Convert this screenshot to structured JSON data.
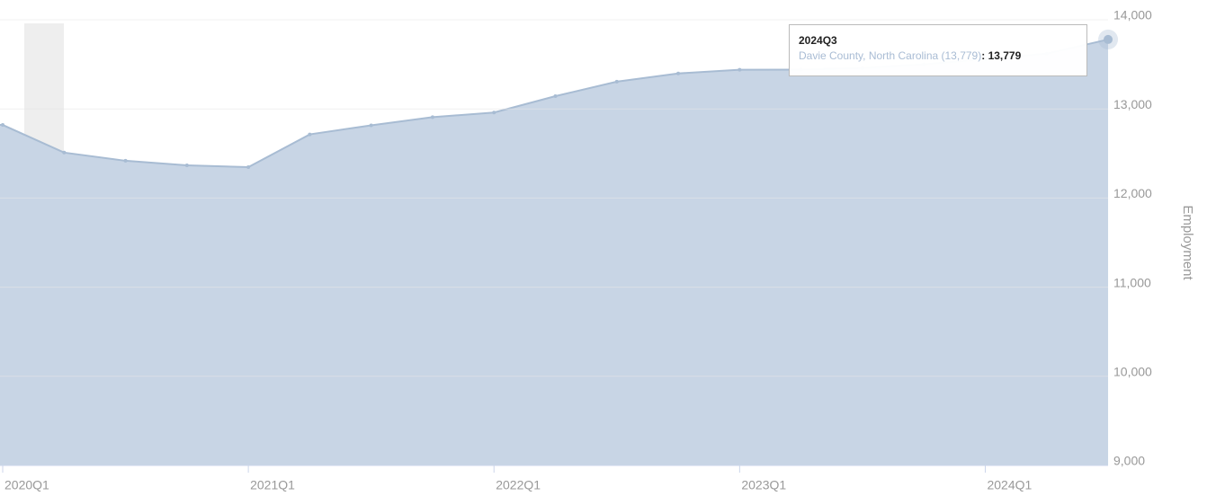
{
  "chart_data": {
    "type": "area",
    "y_label": "Employment",
    "categories": [
      "2020Q1",
      null,
      null,
      null,
      "2021Q1",
      null,
      null,
      null,
      "2022Q1",
      null,
      null,
      null,
      "2023Q1",
      null,
      null,
      null,
      "2024Q1",
      null,
      null
    ],
    "series": [
      {
        "name": "Davie County, North Carolina",
        "color": "#a8bcd3",
        "fill": "#c5d3e4",
        "values": [
          12820,
          12510,
          12418,
          12367,
          12347,
          12714,
          12816,
          12908,
          12959,
          13143,
          13306,
          13398,
          13439,
          13440,
          13460,
          13500,
          13560,
          13620,
          13779
        ]
      }
    ],
    "ylim": [
      9000,
      14000
    ],
    "yticks": [
      {
        "value": 9000,
        "label": "9,000"
      },
      {
        "value": 10000,
        "label": "10,000"
      },
      {
        "value": 11000,
        "label": "11,000"
      },
      {
        "value": 12000,
        "label": "12,000"
      },
      {
        "value": 13000,
        "label": "13,000"
      },
      {
        "value": 14000,
        "label": "14,000"
      }
    ],
    "grid": true,
    "tooltip": {
      "title": "2024Q3",
      "series_label": "Davie County, North Carolina (13,779)",
      "separator": ":",
      "value": "13,779"
    }
  }
}
